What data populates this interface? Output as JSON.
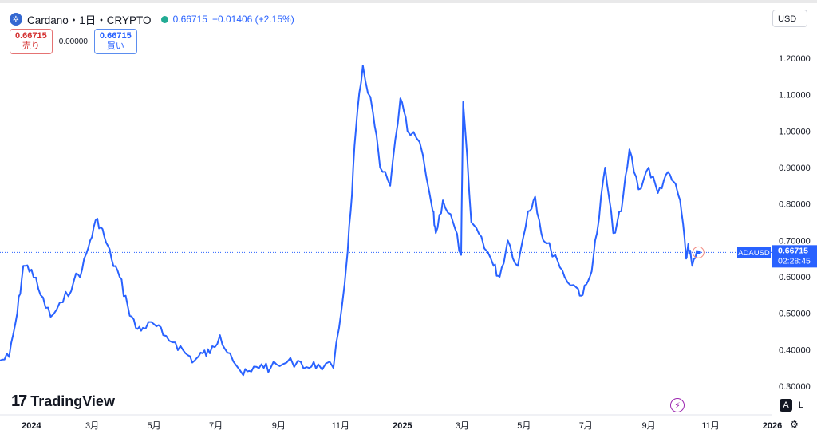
{
  "header": {
    "symbol_icon": "cardano-logo-icon",
    "title": "Cardano・1日・CRYPTO",
    "last_price": "0.66715",
    "change": "+0.01406 (+2.15%)"
  },
  "trade": {
    "sell_price": "0.66715",
    "sell_label": "売り",
    "spread": "0.00000",
    "buy_price": "0.66715",
    "buy_label": "買い"
  },
  "currency": "USD",
  "price_label": {
    "ticker": "ADAUSD",
    "price": "0.66715",
    "countdown": "02:28:45"
  },
  "branding": "TradingView",
  "buttons": {
    "auto": "A",
    "log": "L"
  },
  "colors": {
    "line": "#2962ff",
    "axis_text": "#131722",
    "price_tag": "#2962ff"
  },
  "chart_data": {
    "type": "line",
    "title": "",
    "xlabel": "",
    "ylabel": "",
    "ylim": [
      0.28,
      1.25
    ],
    "yticks": [
      "1.20000",
      "1.10000",
      "1.00000",
      "0.90000",
      "0.80000",
      "0.70000",
      "0.60000",
      "0.50000",
      "0.40000",
      "0.30000"
    ],
    "xticks": [
      "2024",
      "3月",
      "5月",
      "7月",
      "9月",
      "11月",
      "2025",
      "3月",
      "5月",
      "7月",
      "9月",
      "11月",
      "2026"
    ],
    "xlim": [
      "2023-12-01",
      "2026-01-01"
    ],
    "current_value": 0.66715,
    "x": [
      "2023-12-01",
      "2023-12-10",
      "2023-12-18",
      "2023-12-24",
      "2024-01-01",
      "2024-01-10",
      "2024-01-20",
      "2024-02-01",
      "2024-02-12",
      "2024-02-20",
      "2024-02-28",
      "2024-03-06",
      "2024-03-13",
      "2024-03-20",
      "2024-03-28",
      "2024-04-05",
      "2024-04-13",
      "2024-04-20",
      "2024-05-01",
      "2024-05-10",
      "2024-05-22",
      "2024-06-01",
      "2024-06-10",
      "2024-06-18",
      "2024-06-25",
      "2024-07-05",
      "2024-07-15",
      "2024-07-28",
      "2024-08-05",
      "2024-08-15",
      "2024-08-24",
      "2024-09-05",
      "2024-09-20",
      "2024-10-01",
      "2024-10-10",
      "2024-10-25",
      "2024-11-05",
      "2024-11-11",
      "2024-11-16",
      "2024-11-23",
      "2024-12-03",
      "2024-12-10",
      "2024-12-20",
      "2024-12-30",
      "2025-01-06",
      "2025-01-18",
      "2025-01-31",
      "2025-02-03",
      "2025-02-10",
      "2025-02-20",
      "2025-02-28",
      "2025-03-02",
      "2025-03-10",
      "2025-03-20",
      "2025-04-01",
      "2025-04-07",
      "2025-04-15",
      "2025-04-25",
      "2025-05-05",
      "2025-05-12",
      "2025-05-20",
      "2025-06-01",
      "2025-06-10",
      "2025-06-22",
      "2025-06-28",
      "2025-07-05",
      "2025-07-12",
      "2025-07-20",
      "2025-07-28",
      "2025-08-05",
      "2025-08-13",
      "2025-08-22",
      "2025-09-01",
      "2025-09-10",
      "2025-09-18",
      "2025-09-26",
      "2025-10-02",
      "2025-10-08",
      "2025-10-10",
      "2025-10-14",
      "2025-10-20"
    ],
    "values": [
      0.37,
      0.38,
      0.5,
      0.63,
      0.62,
      0.55,
      0.49,
      0.53,
      0.59,
      0.62,
      0.7,
      0.76,
      0.71,
      0.65,
      0.6,
      0.52,
      0.46,
      0.46,
      0.47,
      0.44,
      0.42,
      0.39,
      0.37,
      0.39,
      0.39,
      0.44,
      0.39,
      0.33,
      0.34,
      0.36,
      0.35,
      0.36,
      0.37,
      0.35,
      0.36,
      0.35,
      0.58,
      0.78,
      1.0,
      1.18,
      1.05,
      0.9,
      0.85,
      1.09,
      1.0,
      0.97,
      0.78,
      0.72,
      0.81,
      0.75,
      0.66,
      1.08,
      0.75,
      0.71,
      0.63,
      0.6,
      0.7,
      0.63,
      0.78,
      0.82,
      0.7,
      0.66,
      0.6,
      0.57,
      0.55,
      0.6,
      0.72,
      0.9,
      0.72,
      0.78,
      0.95,
      0.84,
      0.9,
      0.83,
      0.88,
      0.86,
      0.81,
      0.65,
      0.69,
      0.63,
      0.667
    ]
  }
}
